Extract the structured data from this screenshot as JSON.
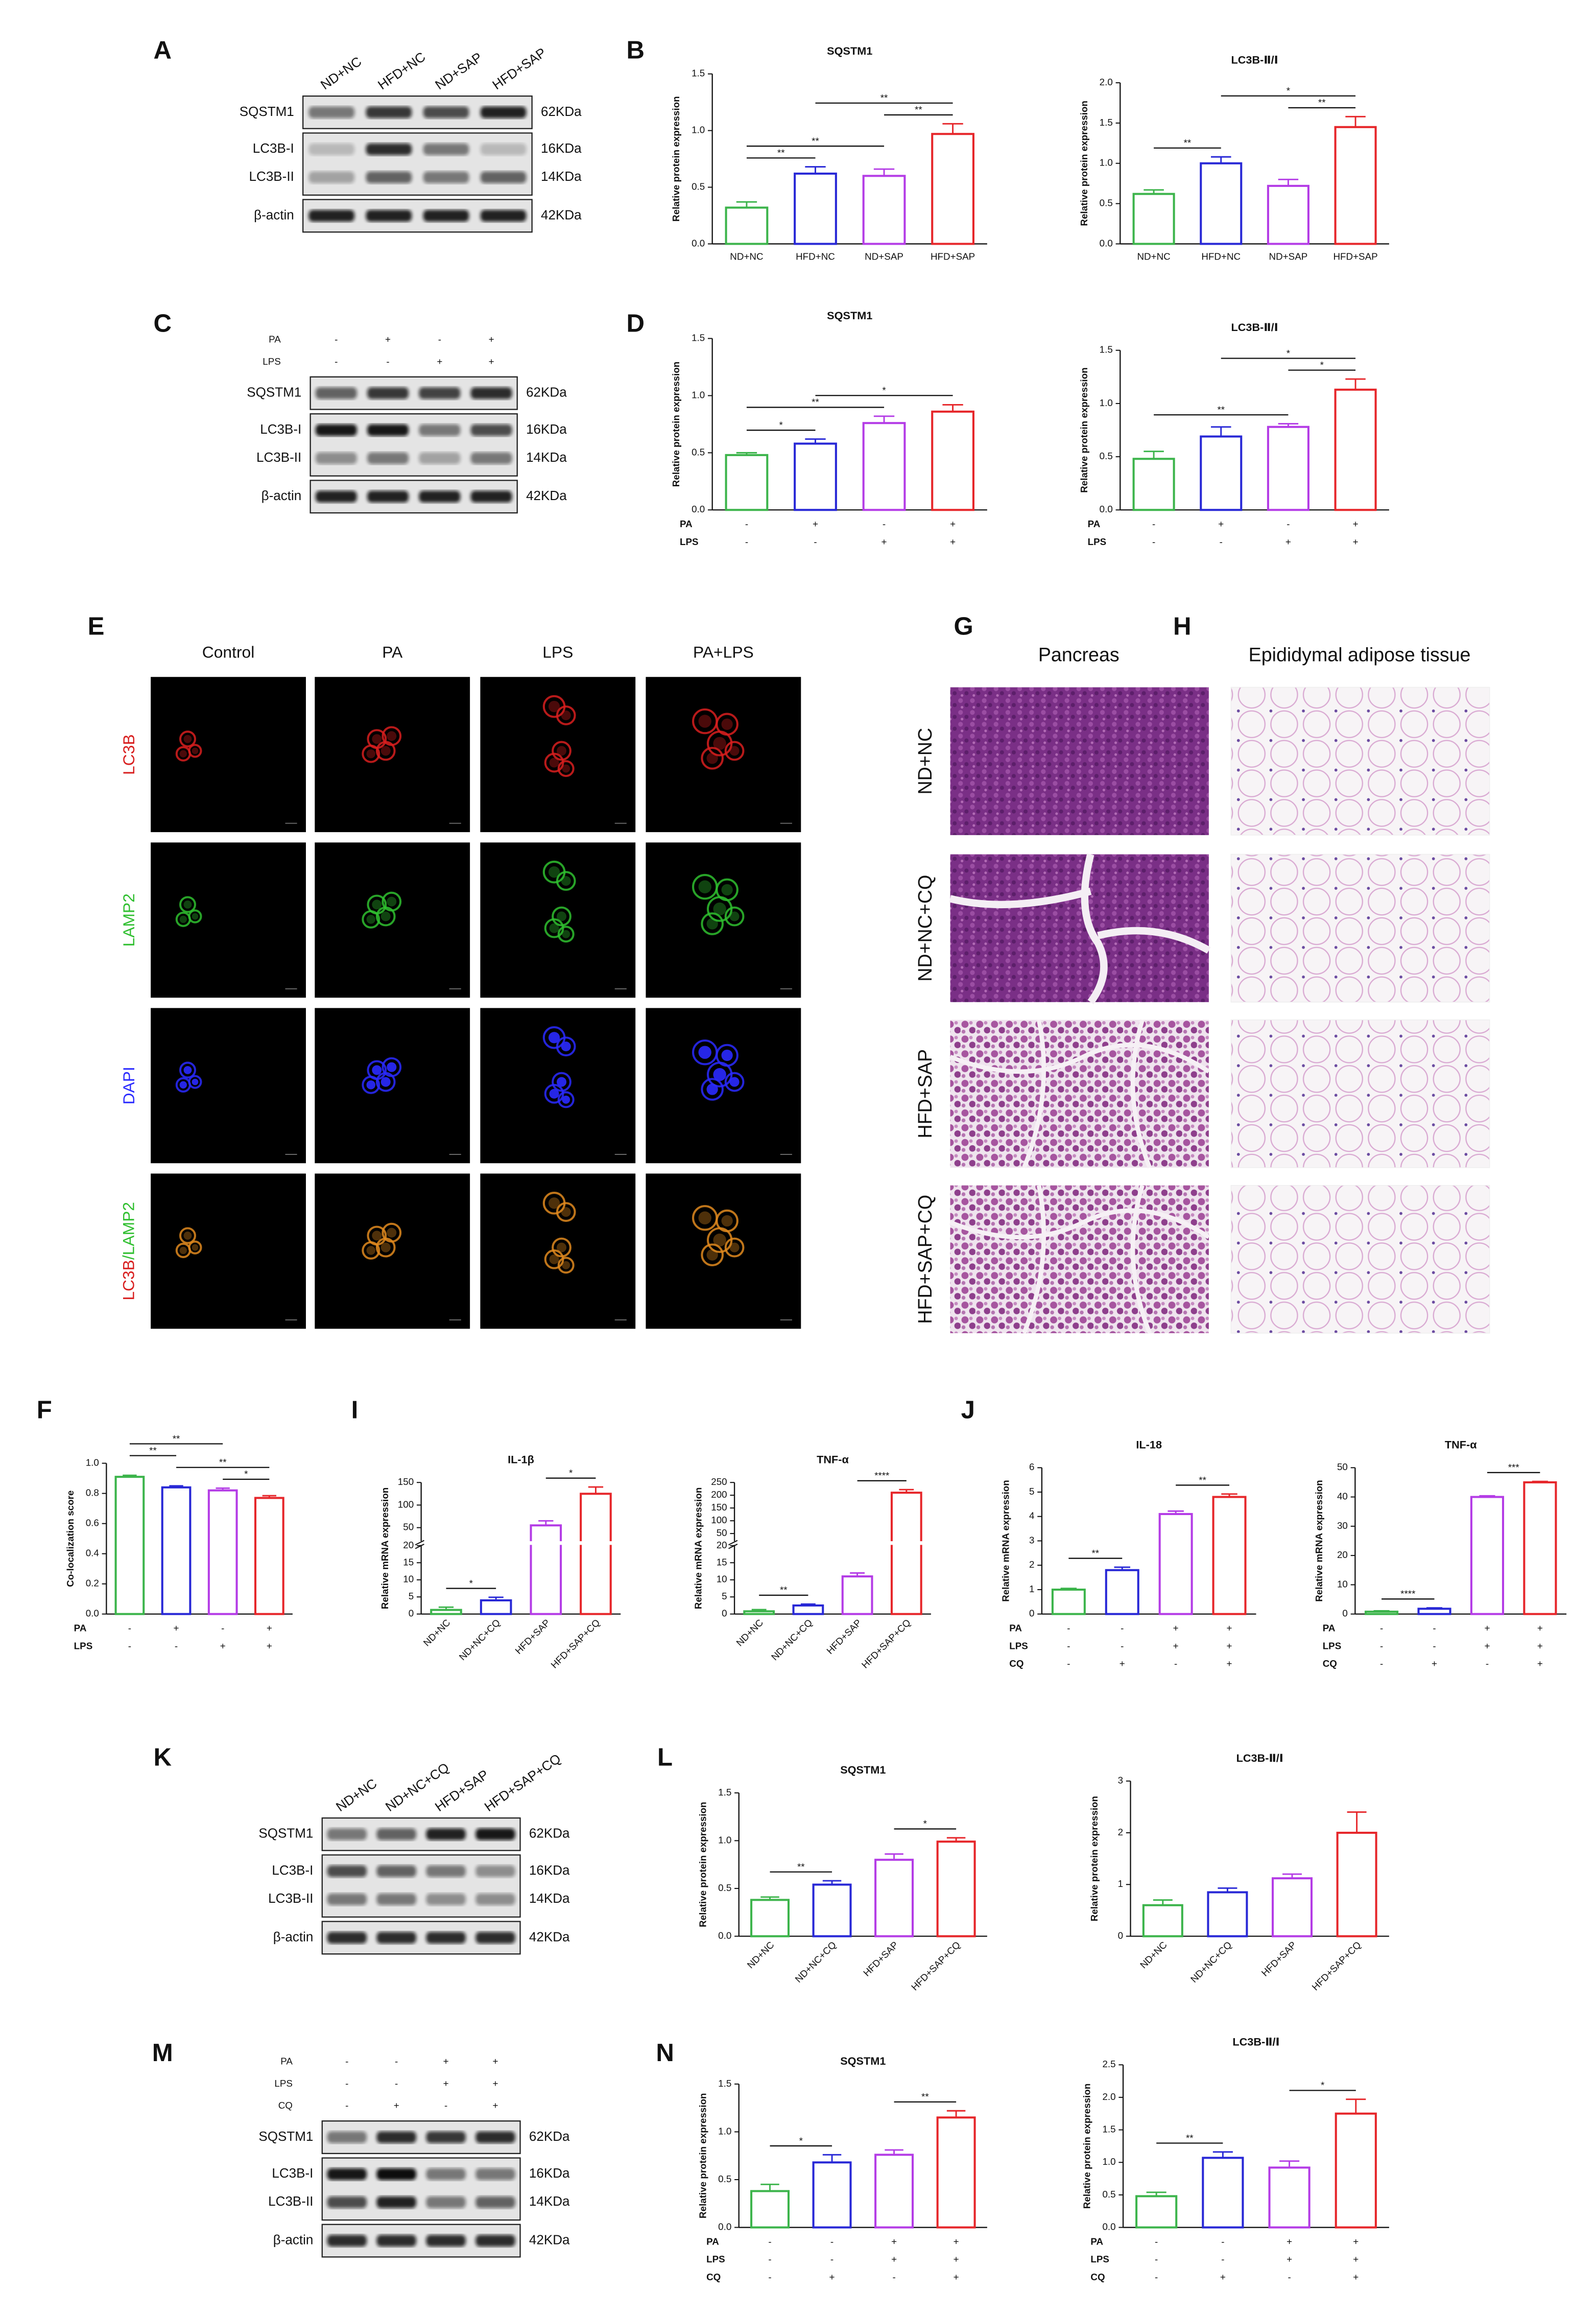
{
  "panel_labels": [
    "A",
    "B",
    "C",
    "D",
    "E",
    "F",
    "G",
    "H",
    "I",
    "J",
    "K",
    "L",
    "M",
    "N"
  ],
  "blots": [
    {
      "lanes": [
        "ND+NC",
        "HFD+NC",
        "ND+SAP",
        "HFD+SAP"
      ],
      "rows": [
        "SQSTM1",
        "LC3B-I",
        "LC3B-II",
        "β-actin"
      ],
      "sizes": [
        "62KDa",
        "16KDa",
        "14KDa",
        "42KDa"
      ]
    },
    {
      "conditions": [
        {
          "name": "PA",
          "values": [
            "-",
            "+",
            "-",
            "+"
          ]
        },
        {
          "name": "LPS",
          "values": [
            "-",
            "-",
            "+",
            "+"
          ]
        }
      ],
      "rows": [
        "SQSTM1",
        "LC3B-I",
        "LC3B-II",
        "β-actin"
      ],
      "sizes": [
        "62KDa",
        "16KDa",
        "14KDa",
        "42KDa"
      ]
    },
    {
      "lanes": [
        "ND+NC",
        "ND+NC+CQ",
        "HFD+SAP",
        "HFD+SAP+CQ"
      ],
      "rows": [
        "SQSTM1",
        "LC3B-I",
        "LC3B-II",
        "β-actin"
      ],
      "sizes": [
        "62KDa",
        "16KDa",
        "14KDa",
        "42KDa"
      ]
    },
    {
      "conditions": [
        {
          "name": "PA",
          "values": [
            "-",
            "-",
            "+",
            "+"
          ]
        },
        {
          "name": "LPS",
          "values": [
            "-",
            "-",
            "+",
            "+"
          ]
        },
        {
          "name": "CQ",
          "values": [
            "-",
            "+",
            "-",
            "+"
          ]
        }
      ],
      "rows": [
        "SQSTM1",
        "LC3B-I",
        "LC3B-II",
        "β-actin"
      ],
      "sizes": [
        "62KDa",
        "16KDa",
        "14KDa",
        "42KDa"
      ]
    }
  ],
  "immunofluorescence": {
    "columns": [
      "Control",
      "PA",
      "LPS",
      "PA+LPS"
    ],
    "rows": [
      "LC3B",
      "LAMP2",
      "DAPI"
    ],
    "merge": [
      "LC3B",
      "/LAMP2"
    ]
  },
  "histology": {
    "columns": [
      "Pancreas",
      "Epididymal adipose tissue"
    ],
    "rows": [
      "ND+NC",
      "ND+NC+CQ",
      "HFD+SAP",
      "HFD+SAP+CQ"
    ]
  },
  "chart_data": [
    {
      "type": "bar",
      "title": "SQSTM1",
      "ylabel": "Relative protein expression",
      "categories": [
        "ND+NC",
        "HFD+NC",
        "ND+SAP",
        "HFD+SAP"
      ],
      "values": [
        0.32,
        0.62,
        0.6,
        0.97
      ],
      "errors": [
        0.05,
        0.06,
        0.06,
        0.09
      ],
      "colors": [
        "#3cb44b",
        "#2828d6",
        "#b43ce6",
        "#e6262a"
      ],
      "ylim": [
        0,
        1.5
      ],
      "yticks": [
        {
          "value": 0,
          "label": "0.0"
        },
        0.5,
        {
          "value": 1,
          "label": "1.0"
        },
        1.5
      ],
      "significance": [
        {
          "label": "**",
          "between": [
            0,
            1
          ]
        },
        {
          "label": "**",
          "between": [
            0,
            2
          ]
        },
        {
          "label": "**",
          "between": [
            2,
            3
          ]
        },
        {
          "label": "**",
          "between": [
            1,
            3
          ]
        }
      ]
    },
    {
      "type": "bar",
      "title": "LC3B-Ⅱ/Ⅰ",
      "ylabel": "Relative protein expression",
      "categories": [
        "ND+NC",
        "HFD+NC",
        "ND+SAP",
        "HFD+SAP"
      ],
      "values": [
        0.62,
        1.0,
        0.72,
        1.45
      ],
      "errors": [
        0.05,
        0.08,
        0.08,
        0.13
      ],
      "colors": [
        "#3cb44b",
        "#2828d6",
        "#b43ce6",
        "#e6262a"
      ],
      "ylim": [
        0,
        2
      ],
      "yticks": [
        {
          "value": 0,
          "label": "0.0"
        },
        0.5,
        {
          "value": 1,
          "label": "1.0"
        },
        1.5,
        {
          "value": 2,
          "label": "2.0"
        }
      ],
      "significance": [
        {
          "label": "**",
          "between": [
            0,
            1
          ]
        },
        {
          "label": "**",
          "between": [
            2,
            3
          ]
        },
        {
          "label": "*",
          "between": [
            1,
            3
          ]
        }
      ]
    },
    {
      "type": "bar",
      "title": "SQSTM1",
      "ylabel": "Relative protein expression",
      "conditions": [
        {
          "name": "PA",
          "values": [
            "-",
            "+",
            "-",
            "+"
          ]
        },
        {
          "name": "LPS",
          "values": [
            "-",
            "-",
            "+",
            "+"
          ]
        }
      ],
      "values": [
        0.48,
        0.58,
        0.76,
        0.86
      ],
      "errors": [
        0.02,
        0.04,
        0.06,
        0.06
      ],
      "colors": [
        "#3cb44b",
        "#2828d6",
        "#b43ce6",
        "#e6262a"
      ],
      "ylim": [
        0,
        1.5
      ],
      "yticks": [
        {
          "value": 0,
          "label": "0.0"
        },
        0.5,
        {
          "value": 1,
          "label": "1.0"
        },
        1.5
      ],
      "significance": [
        {
          "label": "*",
          "between": [
            0,
            1
          ]
        },
        {
          "label": "**",
          "between": [
            0,
            2
          ]
        },
        {
          "label": "*",
          "between": [
            1,
            3
          ]
        }
      ]
    },
    {
      "type": "bar",
      "title": "LC3B-Ⅱ/Ⅰ",
      "ylabel": "Relative protein expression",
      "conditions": [
        {
          "name": "PA",
          "values": [
            "-",
            "+",
            "-",
            "+"
          ]
        },
        {
          "name": "LPS",
          "values": [
            "-",
            "-",
            "+",
            "+"
          ]
        }
      ],
      "values": [
        0.48,
        0.69,
        0.78,
        1.13
      ],
      "errors": [
        0.07,
        0.09,
        0.03,
        0.1
      ],
      "colors": [
        "#3cb44b",
        "#2828d6",
        "#b43ce6",
        "#e6262a"
      ],
      "ylim": [
        0,
        1.5
      ],
      "yticks": [
        {
          "value": 0,
          "label": "0.0"
        },
        0.5,
        {
          "value": 1,
          "label": "1.0"
        },
        1.5
      ],
      "significance": [
        {
          "label": "**",
          "between": [
            0,
            2
          ]
        },
        {
          "label": "*",
          "between": [
            2,
            3
          ]
        },
        {
          "label": "*",
          "between": [
            1,
            3
          ]
        }
      ]
    },
    {
      "type": "bar",
      "ylabel": "Co-localization score",
      "conditions": [
        {
          "name": "PA",
          "values": [
            "-",
            "+",
            "-",
            "+"
          ]
        },
        {
          "name": "LPS",
          "values": [
            "-",
            "-",
            "+",
            "+"
          ]
        }
      ],
      "values": [
        0.91,
        0.84,
        0.82,
        0.77
      ],
      "errors": [
        0.01,
        0.01,
        0.015,
        0.015
      ],
      "colors": [
        "#3cb44b",
        "#2828d6",
        "#b43ce6",
        "#e6262a"
      ],
      "ylim": [
        0,
        1
      ],
      "yticks": [
        {
          "value": 0,
          "label": "0.0"
        },
        0.2,
        0.4,
        0.6,
        0.8,
        {
          "value": 1,
          "label": "1.0"
        }
      ],
      "significance": [
        {
          "label": "*",
          "between": [
            2,
            3
          ]
        },
        {
          "label": "**",
          "between": [
            1,
            3
          ]
        },
        {
          "label": "**",
          "between": [
            0,
            1
          ]
        },
        {
          "label": "**",
          "between": [
            0,
            2
          ]
        }
      ]
    },
    {
      "type": "bar",
      "title": "IL-1β",
      "ylabel": "Relative mRNA expression",
      "categories": [
        "ND+NC",
        "ND+NC+CQ",
        "HFD+SAP",
        "HFD+SAP+CQ"
      ],
      "values": [
        1.2,
        4.0,
        55,
        125
      ],
      "errors": [
        0.8,
        0.9,
        10,
        15
      ],
      "colors": [
        "#3cb44b",
        "#2828d6",
        "#b43ce6",
        "#e6262a"
      ],
      "ylim": [
        0,
        150
      ],
      "ysegments": [
        [
          0,
          20
        ],
        [
          20,
          150
        ]
      ],
      "yticks": [
        0,
        5,
        10,
        15,
        20,
        50,
        100,
        150
      ],
      "significance": [
        {
          "label": "*",
          "between": [
            0,
            1
          ]
        },
        {
          "label": "*",
          "between": [
            2,
            3
          ]
        }
      ]
    },
    {
      "type": "bar",
      "title": "TNF-α",
      "ylabel": "Relative mRNA expression",
      "categories": [
        "ND+NC",
        "ND+NC+CQ",
        "HFD+SAP",
        "HFD+SAP+CQ"
      ],
      "values": [
        0.8,
        2.5,
        11,
        210
      ],
      "errors": [
        0.5,
        0.4,
        1,
        12
      ],
      "colors": [
        "#3cb44b",
        "#2828d6",
        "#b43ce6",
        "#e6262a"
      ],
      "ylim": [
        0,
        250
      ],
      "ysegments": [
        [
          0,
          20
        ],
        [
          20,
          250
        ]
      ],
      "yticks": [
        0,
        5,
        10,
        15,
        20,
        50,
        100,
        150,
        200,
        250
      ],
      "significance": [
        {
          "label": "**",
          "between": [
            0,
            1
          ]
        },
        {
          "label": "****",
          "between": [
            2,
            3
          ]
        }
      ]
    },
    {
      "type": "bar",
      "title": "IL-18",
      "ylabel": "Relative mRNA expression",
      "conditions": [
        {
          "name": "PA",
          "values": [
            "-",
            "-",
            "+",
            "+"
          ]
        },
        {
          "name": "LPS",
          "values": [
            "-",
            "-",
            "+",
            "+"
          ]
        },
        {
          "name": "CQ",
          "values": [
            "-",
            "+",
            "-",
            "+"
          ]
        }
      ],
      "values": [
        1.0,
        1.8,
        4.1,
        4.8
      ],
      "errors": [
        0.05,
        0.12,
        0.12,
        0.12
      ],
      "colors": [
        "#3cb44b",
        "#2828d6",
        "#b43ce6",
        "#e6262a"
      ],
      "ylim": [
        0,
        6
      ],
      "yticks": [
        0,
        1,
        2,
        3,
        4,
        5,
        6
      ],
      "significance": [
        {
          "label": "**",
          "between": [
            0,
            1
          ]
        },
        {
          "label": "**",
          "between": [
            2,
            3
          ]
        }
      ]
    },
    {
      "type": "bar",
      "title": "TNF-α",
      "ylabel": "Relative mRNA expression",
      "conditions": [
        {
          "name": "PA",
          "values": [
            "-",
            "-",
            "+",
            "+"
          ]
        },
        {
          "name": "LPS",
          "values": [
            "-",
            "-",
            "+",
            "+"
          ]
        },
        {
          "name": "CQ",
          "values": [
            "-",
            "+",
            "-",
            "+"
          ]
        }
      ],
      "values": [
        0.8,
        1.8,
        40,
        45
      ],
      "errors": [
        0.3,
        0.3,
        0.4,
        0.3
      ],
      "colors": [
        "#3cb44b",
        "#2828d6",
        "#b43ce6",
        "#e6262a"
      ],
      "ylim": [
        0,
        50
      ],
      "yticks": [
        0,
        10,
        20,
        30,
        40,
        50
      ],
      "significance": [
        {
          "label": "****",
          "between": [
            0,
            1
          ]
        },
        {
          "label": "***",
          "between": [
            2,
            3
          ]
        }
      ]
    },
    {
      "type": "bar",
      "title": "SQSTM1",
      "ylabel": "Relative protein expression",
      "categories": [
        "ND+NC",
        "ND+NC+CQ",
        "HFD+SAP",
        "HFD+SAP+CQ"
      ],
      "values": [
        0.38,
        0.54,
        0.8,
        0.99
      ],
      "errors": [
        0.03,
        0.04,
        0.06,
        0.04
      ],
      "colors": [
        "#3cb44b",
        "#2828d6",
        "#b43ce6",
        "#e6262a"
      ],
      "ylim": [
        0,
        1.5
      ],
      "yticks": [
        {
          "value": 0,
          "label": "0.0"
        },
        0.5,
        {
          "value": 1,
          "label": "1.0"
        },
        1.5
      ],
      "significance": [
        {
          "label": "**",
          "between": [
            0,
            1
          ]
        },
        {
          "label": "*",
          "between": [
            2,
            3
          ]
        }
      ]
    },
    {
      "type": "bar",
      "title": "LC3B-Ⅱ/Ⅰ",
      "ylabel": "Relative protein expression",
      "categories": [
        "ND+NC",
        "ND+NC+CQ",
        "HFD+SAP",
        "HFD+SAP+CQ"
      ],
      "values": [
        0.6,
        0.85,
        1.12,
        2.0
      ],
      "errors": [
        0.1,
        0.08,
        0.08,
        0.4
      ],
      "colors": [
        "#3cb44b",
        "#2828d6",
        "#b43ce6",
        "#e6262a"
      ],
      "ylim": [
        0,
        3
      ],
      "yticks": [
        0,
        1,
        2,
        3
      ]
    },
    {
      "type": "bar",
      "title": "SQSTM1",
      "ylabel": "Relative protein expression",
      "conditions": [
        {
          "name": "PA",
          "values": [
            "-",
            "-",
            "+",
            "+"
          ]
        },
        {
          "name": "LPS",
          "values": [
            "-",
            "-",
            "+",
            "+"
          ]
        },
        {
          "name": "CQ",
          "values": [
            "-",
            "+",
            "-",
            "+"
          ]
        }
      ],
      "values": [
        0.38,
        0.68,
        0.76,
        1.15
      ],
      "errors": [
        0.07,
        0.08,
        0.05,
        0.07
      ],
      "colors": [
        "#3cb44b",
        "#2828d6",
        "#b43ce6",
        "#e6262a"
      ],
      "ylim": [
        0,
        1.5
      ],
      "yticks": [
        {
          "value": 0,
          "label": "0.0"
        },
        0.5,
        {
          "value": 1,
          "label": "1.0"
        },
        1.5
      ],
      "significance": [
        {
          "label": "*",
          "between": [
            0,
            1
          ]
        },
        {
          "label": "**",
          "between": [
            2,
            3
          ]
        }
      ]
    },
    {
      "type": "bar",
      "title": "LC3B-Ⅱ/Ⅰ",
      "ylabel": "Relative protein expression",
      "conditions": [
        {
          "name": "PA",
          "values": [
            "-",
            "-",
            "+",
            "+"
          ]
        },
        {
          "name": "LPS",
          "values": [
            "-",
            "-",
            "+",
            "+"
          ]
        },
        {
          "name": "CQ",
          "values": [
            "-",
            "+",
            "-",
            "+"
          ]
        }
      ],
      "values": [
        0.48,
        1.07,
        0.92,
        1.75
      ],
      "errors": [
        0.06,
        0.09,
        0.1,
        0.22
      ],
      "colors": [
        "#3cb44b",
        "#2828d6",
        "#b43ce6",
        "#e6262a"
      ],
      "ylim": [
        0,
        2.5
      ],
      "yticks": [
        {
          "value": 0,
          "label": "0.0"
        },
        0.5,
        {
          "value": 1,
          "label": "1.0"
        },
        1.5,
        {
          "value": 2,
          "label": "2.0"
        },
        2.5
      ],
      "significance": [
        {
          "label": "**",
          "between": [
            0,
            1
          ]
        },
        {
          "label": "*",
          "between": [
            2,
            3
          ]
        }
      ]
    }
  ]
}
